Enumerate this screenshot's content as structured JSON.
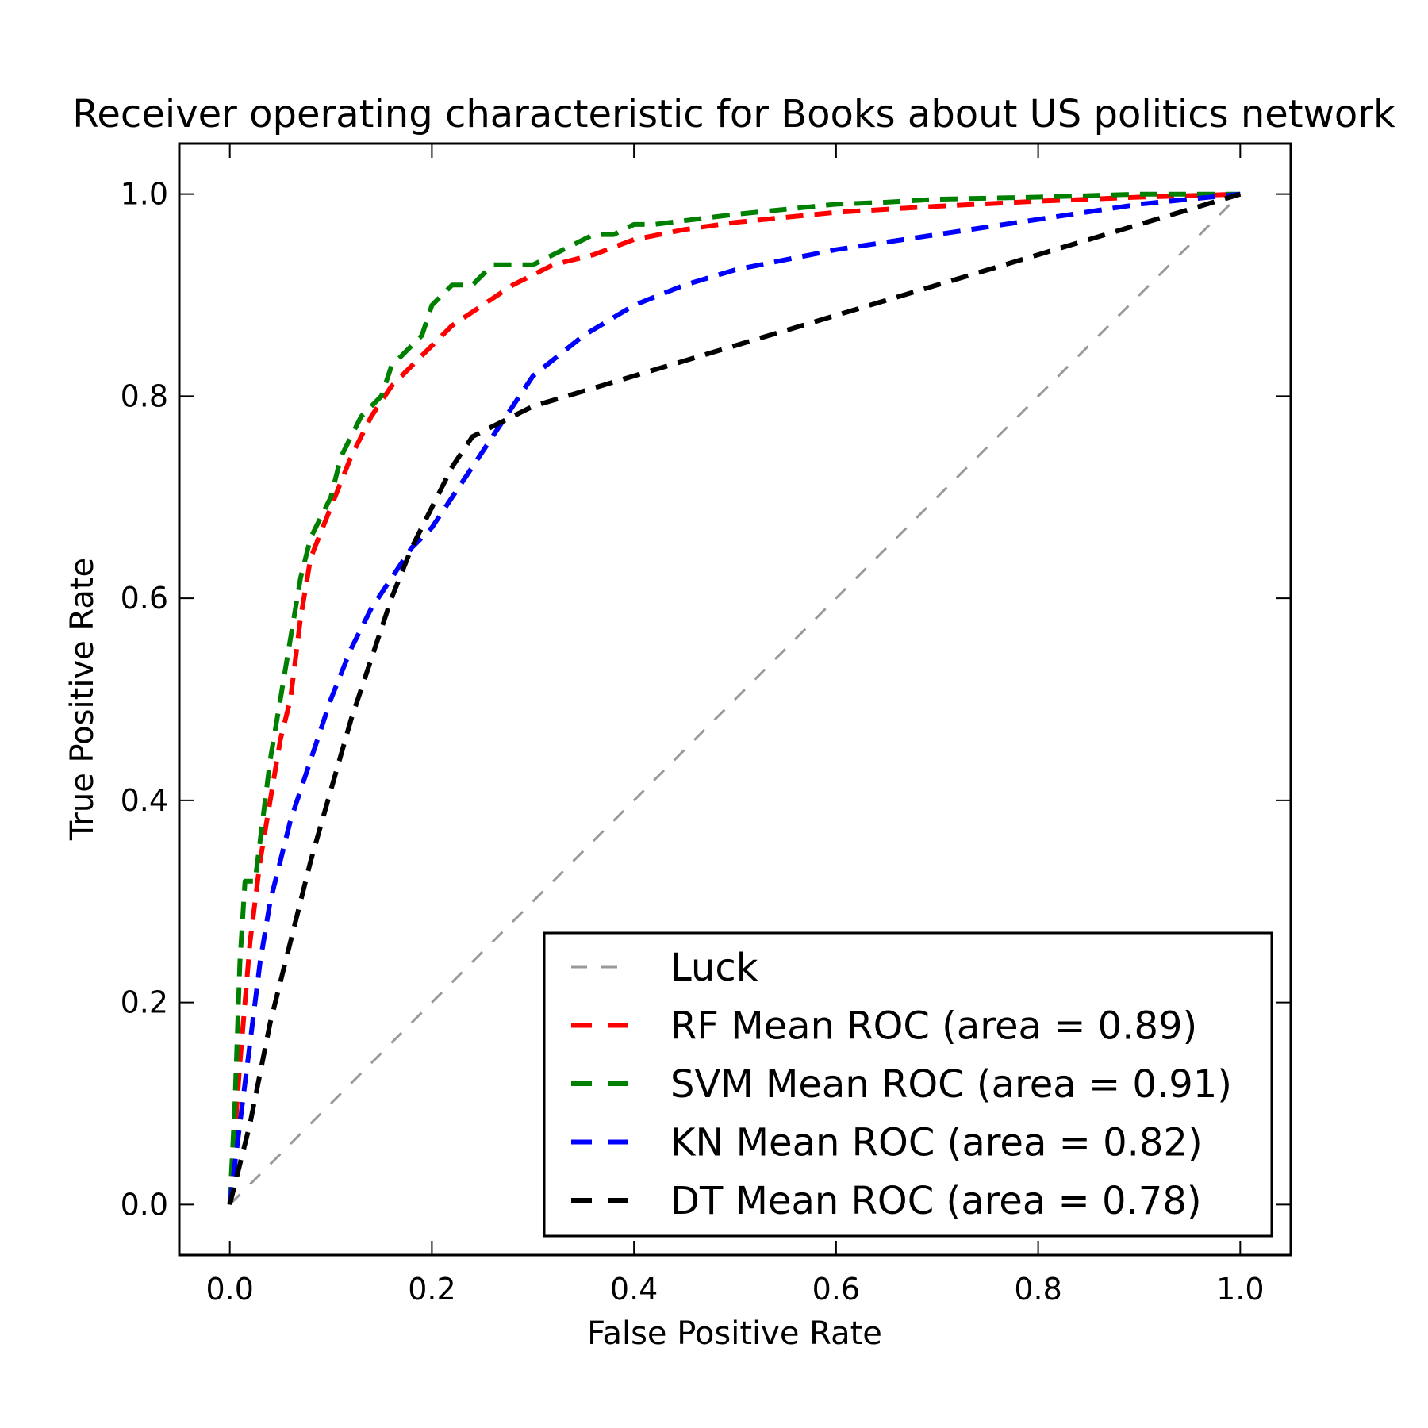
{
  "chart_data": {
    "type": "line",
    "title": "Receiver operating characteristic for Books about US politics network",
    "xlabel": "False Positive Rate",
    "ylabel": "True Positive Rate",
    "xlim": [
      -0.05,
      1.05
    ],
    "ylim": [
      -0.05,
      1.05
    ],
    "xticks": [
      "0.0",
      "0.2",
      "0.4",
      "0.6",
      "0.8",
      "1.0"
    ],
    "yticks": [
      "0.0",
      "0.2",
      "0.4",
      "0.6",
      "0.8",
      "1.0"
    ],
    "grid": false,
    "legend_position": "lower-right",
    "series": [
      {
        "name": "Luck",
        "color": "#999999",
        "style": "dashed-thin",
        "x": [
          0,
          1
        ],
        "y": [
          0,
          1
        ]
      },
      {
        "name": "RF Mean ROC (area = 0.89)",
        "color": "#ff0000",
        "style": "dashed",
        "x": [
          0,
          0.01,
          0.02,
          0.03,
          0.04,
          0.05,
          0.06,
          0.07,
          0.08,
          0.1,
          0.12,
          0.14,
          0.16,
          0.18,
          0.2,
          0.22,
          0.25,
          0.28,
          0.32,
          0.36,
          0.4,
          0.45,
          0.5,
          0.6,
          0.7,
          0.8,
          0.9,
          1.0
        ],
        "y": [
          0,
          0.14,
          0.26,
          0.34,
          0.4,
          0.46,
          0.5,
          0.58,
          0.64,
          0.69,
          0.74,
          0.78,
          0.81,
          0.83,
          0.85,
          0.87,
          0.89,
          0.91,
          0.93,
          0.94,
          0.955,
          0.965,
          0.972,
          0.982,
          0.988,
          0.993,
          0.997,
          1.0
        ]
      },
      {
        "name": "SVM Mean ROC (area = 0.91)",
        "color": "#008000",
        "style": "dashed",
        "x": [
          0,
          0.005,
          0.01,
          0.015,
          0.02,
          0.025,
          0.03,
          0.04,
          0.05,
          0.06,
          0.07,
          0.08,
          0.1,
          0.11,
          0.12,
          0.13,
          0.14,
          0.15,
          0.16,
          0.17,
          0.18,
          0.19,
          0.2,
          0.21,
          0.22,
          0.23,
          0.24,
          0.25,
          0.26,
          0.27,
          0.3,
          0.32,
          0.34,
          0.36,
          0.38,
          0.4,
          0.42,
          0.46,
          0.5,
          0.55,
          0.6,
          0.65,
          0.7,
          0.8,
          0.9,
          1.0
        ],
        "y": [
          0,
          0.1,
          0.24,
          0.32,
          0.32,
          0.32,
          0.36,
          0.44,
          0.5,
          0.56,
          0.62,
          0.66,
          0.7,
          0.74,
          0.76,
          0.78,
          0.79,
          0.8,
          0.83,
          0.84,
          0.85,
          0.86,
          0.89,
          0.9,
          0.91,
          0.91,
          0.91,
          0.92,
          0.93,
          0.93,
          0.93,
          0.94,
          0.95,
          0.96,
          0.96,
          0.97,
          0.97,
          0.975,
          0.98,
          0.985,
          0.99,
          0.992,
          0.995,
          0.997,
          1.0,
          1.0
        ]
      },
      {
        "name": "KN Mean ROC (area = 0.82)",
        "color": "#0000ff",
        "style": "dashed",
        "x": [
          0,
          0.01,
          0.02,
          0.03,
          0.04,
          0.06,
          0.08,
          0.1,
          0.12,
          0.14,
          0.16,
          0.18,
          0.2,
          0.22,
          0.24,
          0.26,
          0.28,
          0.3,
          0.35,
          0.4,
          0.45,
          0.5,
          0.6,
          0.7,
          0.8,
          0.9,
          1.0
        ],
        "y": [
          0,
          0.08,
          0.16,
          0.24,
          0.3,
          0.38,
          0.44,
          0.5,
          0.55,
          0.59,
          0.62,
          0.65,
          0.67,
          0.7,
          0.73,
          0.76,
          0.79,
          0.82,
          0.86,
          0.89,
          0.91,
          0.925,
          0.945,
          0.96,
          0.975,
          0.99,
          1.0
        ]
      },
      {
        "name": "DT Mean ROC (area = 0.78)",
        "color": "#000000",
        "style": "dashed",
        "x": [
          0,
          0.01,
          0.02,
          0.03,
          0.04,
          0.06,
          0.08,
          0.1,
          0.12,
          0.14,
          0.16,
          0.18,
          0.2,
          0.22,
          0.24,
          0.26,
          0.3,
          0.35,
          0.4,
          0.5,
          0.6,
          0.7,
          0.8,
          0.9,
          1.0
        ],
        "y": [
          0,
          0.04,
          0.08,
          0.13,
          0.18,
          0.26,
          0.34,
          0.41,
          0.48,
          0.54,
          0.6,
          0.65,
          0.69,
          0.73,
          0.76,
          0.77,
          0.79,
          0.805,
          0.82,
          0.85,
          0.88,
          0.91,
          0.94,
          0.97,
          1.0
        ]
      }
    ]
  }
}
